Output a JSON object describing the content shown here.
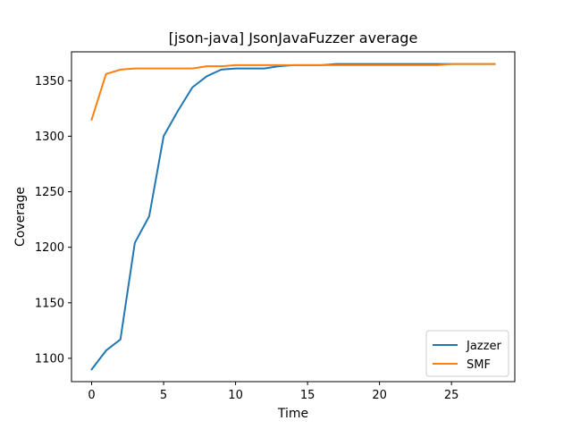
{
  "chart_data": {
    "type": "line",
    "title": "[json-java] JsonJavaFuzzer average",
    "xlabel": "Time",
    "ylabel": "Coverage",
    "xlim": [
      -1.4,
      29.4
    ],
    "ylim": [
      1079,
      1376
    ],
    "xticks": [
      0,
      5,
      10,
      15,
      20,
      25
    ],
    "yticks": [
      1100,
      1150,
      1200,
      1250,
      1300,
      1350
    ],
    "grid": false,
    "legend_position": "lower-right",
    "x": [
      0,
      1,
      2,
      3,
      4,
      5,
      6,
      7,
      8,
      9,
      10,
      11,
      12,
      13,
      14,
      15,
      16,
      17,
      18,
      19,
      20,
      21,
      22,
      23,
      24,
      25,
      26,
      27,
      28
    ],
    "series": [
      {
        "name": "Jazzer",
        "color": "#1f77b4",
        "values": [
          1090,
          1107,
          1117,
          1204,
          1228,
          1300,
          1323,
          1344,
          1354,
          1360,
          1361,
          1361,
          1361,
          1363,
          1364,
          1364,
          1364,
          1365,
          1365,
          1365,
          1365,
          1365,
          1365,
          1365,
          1365,
          1365,
          1365,
          1365,
          1365
        ]
      },
      {
        "name": "SMF",
        "color": "#ff7f0e",
        "values": [
          1315,
          1356,
          1360,
          1361,
          1361,
          1361,
          1361,
          1361,
          1363,
          1363,
          1364,
          1364,
          1364,
          1364,
          1364,
          1364,
          1364,
          1364,
          1364,
          1364,
          1364,
          1364,
          1364,
          1364,
          1364,
          1365,
          1365,
          1365,
          1365
        ]
      }
    ]
  }
}
